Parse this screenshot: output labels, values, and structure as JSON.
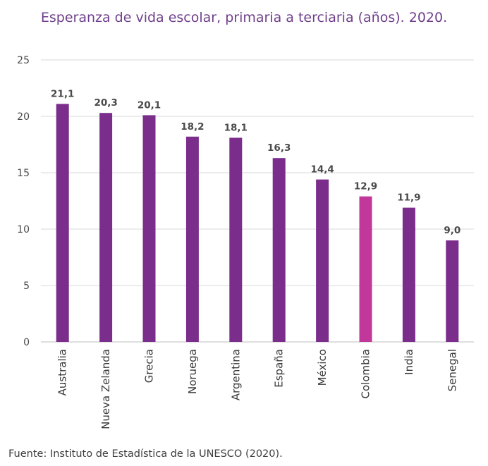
{
  "title": "Esperanza de vida escolar, primaria a terciaria (años). 2020.",
  "source": "Fuente: Instituto de Estadística de la UNESCO (2020).",
  "colors": {
    "bar": "#7b2d8b",
    "highlight": "#c2379a",
    "grid": "#d9d9d9",
    "axis": "#bfbfbf"
  },
  "chart_data": {
    "type": "bar",
    "title": "Esperanza de vida escolar, primaria a terciaria (años). 2020.",
    "xlabel": "",
    "ylabel": "",
    "ylim": [
      0,
      25
    ],
    "yticks": [
      0,
      5,
      10,
      15,
      20,
      25
    ],
    "grid": true,
    "categories": [
      "Australia",
      "Nueva Zelanda",
      "Grecia",
      "Noruega",
      "Argentina",
      "España",
      "México",
      "Colombia",
      "India",
      "Senegal"
    ],
    "values": [
      21.1,
      20.3,
      20.1,
      18.2,
      18.1,
      16.3,
      14.4,
      12.9,
      11.9,
      9.0
    ],
    "value_labels": [
      "21,1",
      "20,3",
      "20,1",
      "18,2",
      "18,1",
      "16,3",
      "14,4",
      "12,9",
      "11,9",
      "9,0"
    ],
    "highlight": "Colombia"
  }
}
